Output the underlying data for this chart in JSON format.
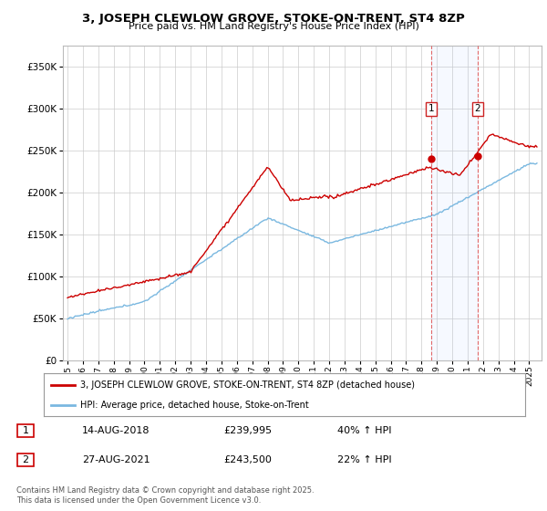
{
  "title": "3, JOSEPH CLEWLOW GROVE, STOKE-ON-TRENT, ST4 8ZP",
  "subtitle": "Price paid vs. HM Land Registry's House Price Index (HPI)",
  "legend_line1": "3, JOSEPH CLEWLOW GROVE, STOKE-ON-TRENT, ST4 8ZP (detached house)",
  "legend_line2": "HPI: Average price, detached house, Stoke-on-Trent",
  "annotation1_label": "1",
  "annotation1_date": "14-AUG-2018",
  "annotation1_price": "£239,995",
  "annotation1_hpi": "40% ↑ HPI",
  "annotation2_label": "2",
  "annotation2_date": "27-AUG-2021",
  "annotation2_price": "£243,500",
  "annotation2_hpi": "22% ↑ HPI",
  "footer": "Contains HM Land Registry data © Crown copyright and database right 2025.\nThis data is licensed under the Open Government Licence v3.0.",
  "hpi_color": "#7ab8e0",
  "price_color": "#cc0000",
  "background_color": "#ffffff",
  "grid_color": "#cccccc",
  "ylim": [
    0,
    375000
  ],
  "yticks": [
    0,
    50000,
    100000,
    150000,
    200000,
    250000,
    300000,
    350000
  ],
  "year_start": 1995,
  "year_end": 2025,
  "sale1_year": 2018.62,
  "sale1_price": 239995,
  "sale2_year": 2021.65,
  "sale2_price": 243500
}
